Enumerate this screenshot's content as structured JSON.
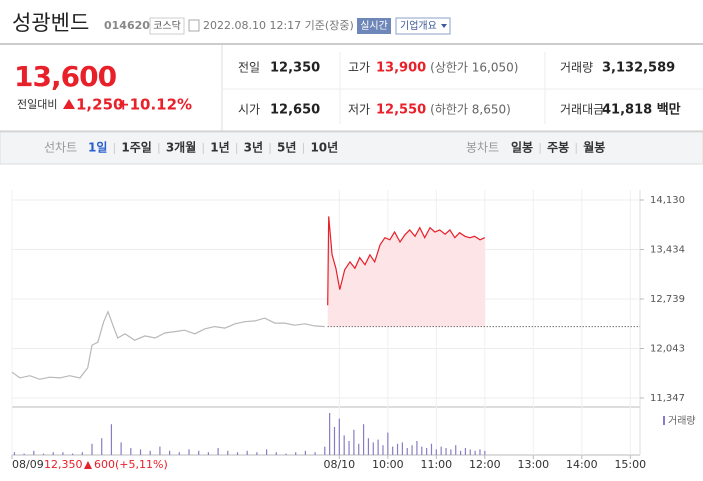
{
  "header": {
    "name": "성광벤드",
    "code": "014620",
    "market": "코스닥",
    "timestamp": "2022.08.10 12:17 기준(장중)",
    "realtime": "실시간",
    "company_info": "기업개요"
  },
  "quote": {
    "price": "13,600",
    "change_label": "전일대비",
    "change": "1,250",
    "change_rate": "+10.12%"
  },
  "stats": {
    "rows": [
      [
        {
          "label": "전일",
          "value": "12,350"
        },
        {
          "label": "고가",
          "value": "13,900",
          "note": "(상한가 16,050)"
        },
        {
          "label": "거래량",
          "value": "3,132,589"
        }
      ],
      [
        {
          "label": "시가",
          "value": "12,650"
        },
        {
          "label": "저가",
          "value": "12,550",
          "note": "(하한가 8,650)"
        },
        {
          "label": "거래대금",
          "value": "41,818 백만"
        }
      ]
    ]
  },
  "tabs": {
    "line_chart": "선차트",
    "periods": [
      "1일",
      "1주일",
      "3개월",
      "1년",
      "3년",
      "5년",
      "10년"
    ],
    "selected": 0,
    "candle_chart": "봉차트",
    "candles": [
      "일봉",
      "주봉",
      "월봉"
    ]
  },
  "chart_data": {
    "type": "line",
    "xlim": [
      2.25,
      15.2
    ],
    "xticks": [
      {
        "value": 2.25,
        "label": "08/09"
      },
      {
        "value": 9,
        "label": "08/10"
      },
      {
        "value": 10,
        "label": "10:00"
      },
      {
        "value": 11,
        "label": "11:00"
      },
      {
        "value": 12,
        "label": "12:00"
      },
      {
        "value": 13,
        "label": "13:00"
      },
      {
        "value": 14,
        "label": "14:00"
      },
      {
        "value": 15,
        "label": "15:00"
      }
    ],
    "ylim": [
      11347,
      14130
    ],
    "yticks": [
      {
        "value": 14130,
        "label": "14,130"
      },
      {
        "value": 13434,
        "label": "13,434"
      },
      {
        "value": 12739,
        "label": "12,739"
      },
      {
        "value": 12043,
        "label": "12,043"
      },
      {
        "value": 11347,
        "label": "11,347"
      }
    ],
    "prev_close": 12350,
    "series": [
      {
        "color": "#b8b8b8",
        "x": [
          2.25,
          2.41,
          2.62,
          2.82,
          3.03,
          3.24,
          3.44,
          3.65,
          3.81,
          3.9,
          4.02,
          4.14,
          4.23,
          4.33,
          4.43,
          4.58,
          4.78,
          4.99,
          5.2,
          5.4,
          5.61,
          5.81,
          6.02,
          6.23,
          6.43,
          6.64,
          6.85,
          7.05,
          7.26,
          7.46,
          7.67,
          7.87,
          8.08,
          8.29,
          8.49,
          8.7
        ],
        "values": [
          11710,
          11630,
          11660,
          11610,
          11640,
          11630,
          11660,
          11630,
          11770,
          12090,
          12130,
          12420,
          12560,
          12370,
          12190,
          12250,
          12160,
          12220,
          12190,
          12260,
          12280,
          12300,
          12250,
          12320,
          12350,
          12330,
          12390,
          12420,
          12430,
          12470,
          12400,
          12400,
          12370,
          12390,
          12360,
          12350
        ]
      },
      {
        "color": "#e8202a",
        "fill": "#fde4e7",
        "x": [
          8.76,
          8.78,
          8.85,
          8.93,
          9.01,
          9.11,
          9.22,
          9.32,
          9.42,
          9.53,
          9.63,
          9.73,
          9.84,
          9.94,
          10.04,
          10.14,
          10.25,
          10.35,
          10.45,
          10.56,
          10.66,
          10.76,
          10.87,
          10.97,
          11.07,
          11.18,
          11.28,
          11.38,
          11.48,
          11.59,
          11.69,
          11.79,
          11.9,
          12.0
        ],
        "values": [
          12650,
          13900,
          13360,
          13170,
          12870,
          13150,
          13260,
          13170,
          13320,
          13220,
          13360,
          13260,
          13500,
          13600,
          13570,
          13680,
          13540,
          13640,
          13710,
          13620,
          13740,
          13600,
          13740,
          13680,
          13710,
          13650,
          13710,
          13600,
          13670,
          13620,
          13600,
          13620,
          13570,
          13600
        ]
      }
    ],
    "volume": {
      "name": "거래량",
      "color": "#8a7cc4",
      "x": [
        2.3,
        2.5,
        2.7,
        2.9,
        3.1,
        3.3,
        3.5,
        3.7,
        3.9,
        4.1,
        4.3,
        4.5,
        4.7,
        4.9,
        5.1,
        5.3,
        5.5,
        5.7,
        5.9,
        6.1,
        6.3,
        6.5,
        6.7,
        6.9,
        7.1,
        7.3,
        7.5,
        7.7,
        7.9,
        8.1,
        8.3,
        8.5,
        8.7,
        8.8,
        8.9,
        9.0,
        9.1,
        9.2,
        9.3,
        9.4,
        9.5,
        9.6,
        9.7,
        9.8,
        9.9,
        10.0,
        10.1,
        10.2,
        10.3,
        10.4,
        10.5,
        10.6,
        10.7,
        10.8,
        10.9,
        11.0,
        11.1,
        11.2,
        11.3,
        11.4,
        11.5,
        11.6,
        11.7,
        11.8,
        11.9,
        12.0
      ],
      "values": [
        2,
        1,
        3,
        1,
        2,
        2,
        1,
        2,
        8,
        12,
        22,
        9,
        5,
        4,
        3,
        6,
        3,
        2,
        4,
        3,
        2,
        5,
        3,
        2,
        3,
        2,
        4,
        2,
        1,
        2,
        3,
        2,
        6,
        30,
        20,
        26,
        14,
        10,
        18,
        8,
        22,
        12,
        9,
        11,
        7,
        16,
        6,
        8,
        9,
        5,
        7,
        10,
        6,
        5,
        8,
        4,
        6,
        5,
        4,
        7,
        3,
        5,
        4,
        3,
        4,
        3
      ]
    }
  },
  "footer": {
    "close": "12,350",
    "change": "600",
    "change_rate": "(+5,11%)"
  }
}
